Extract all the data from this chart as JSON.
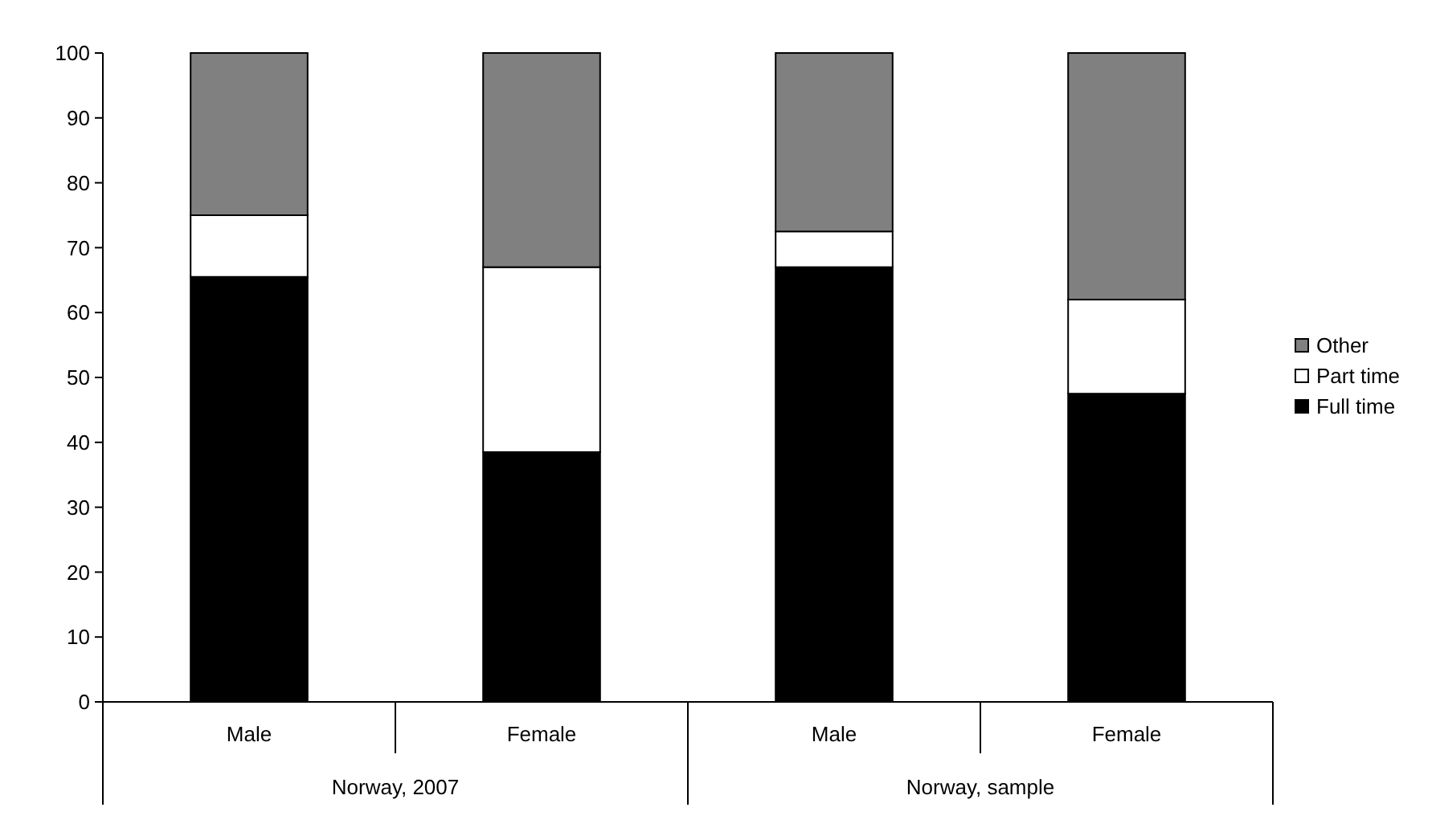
{
  "chart_data": {
    "type": "bar",
    "stacked": true,
    "categories": [
      "Male",
      "Female",
      "Male",
      "Female"
    ],
    "series": [
      {
        "name": "Full time",
        "color": "#000000",
        "values": [
          65.5,
          38.5,
          67,
          47.5
        ]
      },
      {
        "name": "Part time",
        "color": "#ffffff",
        "values": [
          9.5,
          28.5,
          5.5,
          14.5
        ]
      },
      {
        "name": "Other",
        "color": "#808080",
        "values": [
          25,
          33,
          27.5,
          38
        ]
      }
    ],
    "annotations": [
      "Norway, 2007",
      "Norway, sample"
    ],
    "ylim": [
      0,
      100
    ],
    "yticks": [
      0,
      10,
      20,
      30,
      40,
      50,
      60,
      70,
      80,
      90,
      100
    ],
    "grid": false,
    "legend": "right"
  }
}
